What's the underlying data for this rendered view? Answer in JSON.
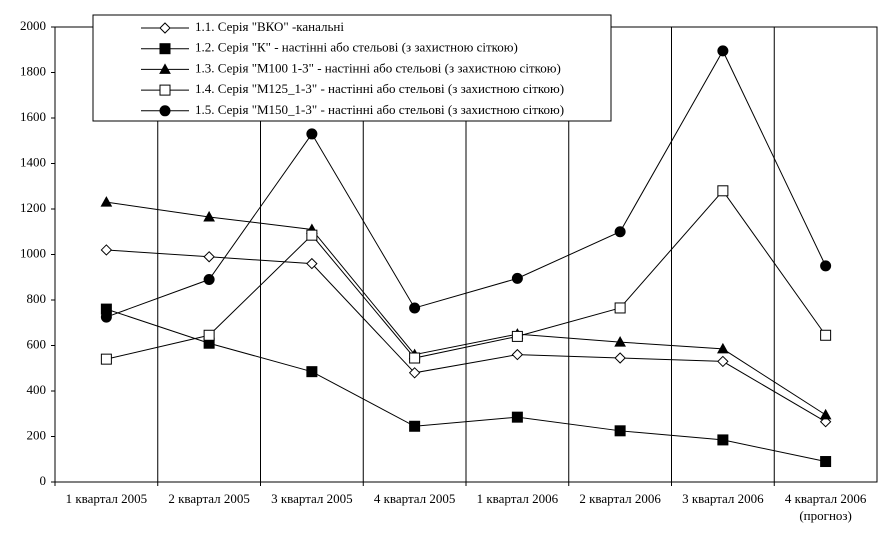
{
  "chart_data": {
    "type": "line",
    "categories": [
      "1 квартал 2005",
      "2 квартал 2005",
      "3 квартал 2005",
      "4 квартал 2005",
      "1 квартал 2006",
      "2 квартал 2006",
      "3 квартал 2006",
      "4 квартал 2006\n(прогноз)"
    ],
    "series": [
      {
        "name": "1.1. Серія \"ВКО\" -канальні",
        "color": "#000000",
        "marker": "diamond-open",
        "values": [
          1020,
          990,
          960,
          480,
          560,
          545,
          530,
          265
        ]
      },
      {
        "name": "1.2. Серія \"К\" - настінні або стельові (з захистною сіткою)",
        "color": "#000000",
        "marker": "square-filled",
        "values": [
          760,
          610,
          485,
          245,
          285,
          225,
          185,
          90
        ]
      },
      {
        "name": "1.3. Серія \"М100 1-3\" - настінні або стельові (з захистною сіткою)",
        "color": "#000000",
        "marker": "triangle-filled",
        "values": [
          1230,
          1165,
          1110,
          560,
          650,
          615,
          585,
          295
        ]
      },
      {
        "name": "1.4. Серія \"М125_1-3\" - настінні або стельові (з захистною сіткою)",
        "color": "#000000",
        "marker": "square-open",
        "values": [
          540,
          645,
          1085,
          545,
          640,
          765,
          1280,
          645
        ]
      },
      {
        "name": "1.5. Серія \"М150_1-3\" - настінні або стельові (з захистною сіткою)",
        "color": "#000000",
        "marker": "circle-filled",
        "values": [
          725,
          890,
          1530,
          765,
          895,
          1100,
          1895,
          950
        ]
      }
    ],
    "ylim": [
      0,
      2000
    ],
    "yticks": [
      0,
      200,
      400,
      600,
      800,
      1000,
      1200,
      1400,
      1600,
      1800,
      2000
    ],
    "vertical_grid": true,
    "legend": "top-left"
  }
}
